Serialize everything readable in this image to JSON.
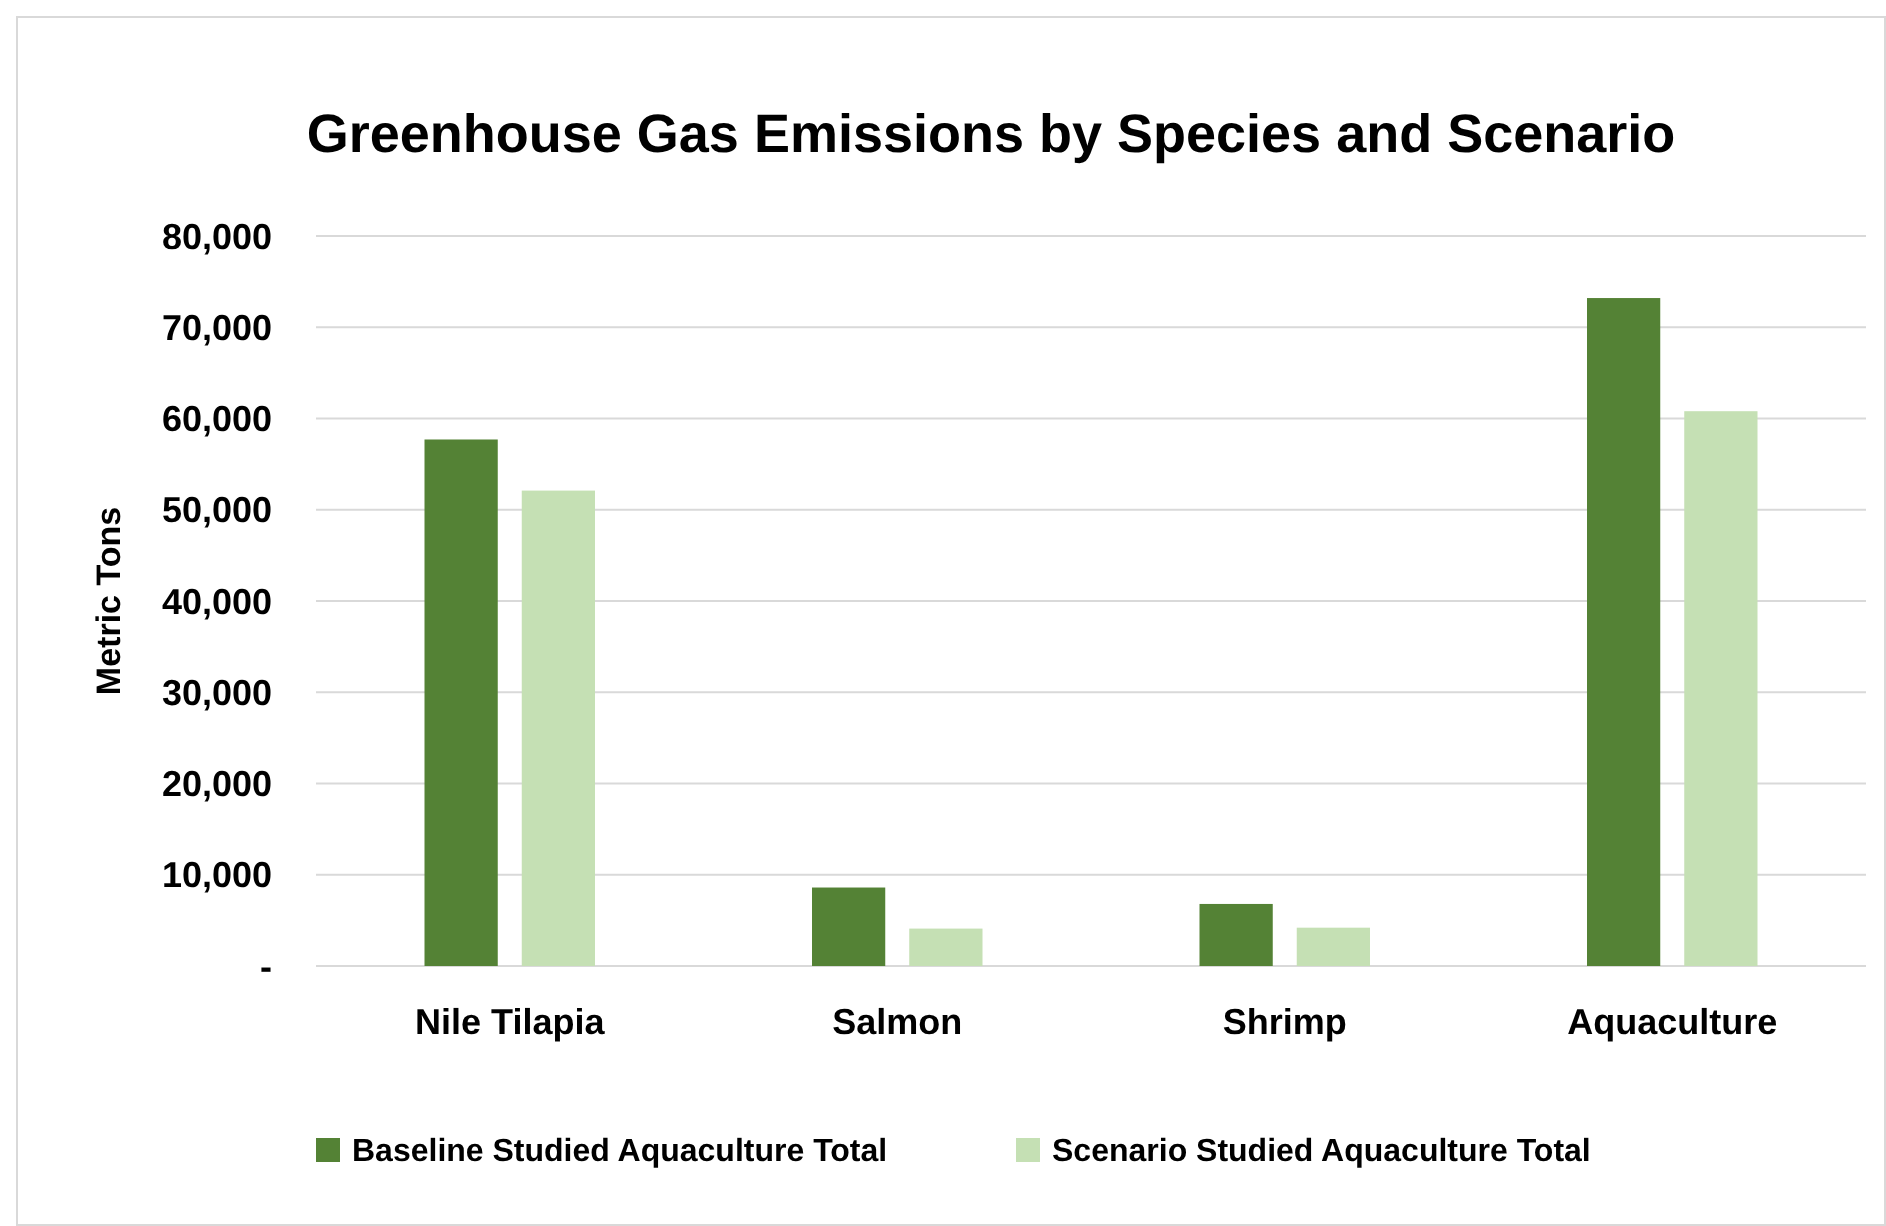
{
  "chart_data": {
    "type": "bar",
    "title": "Greenhouse Gas Emissions by Species and Scenario",
    "ylabel": "Metric Tons",
    "categories": [
      "Nile Tilapia",
      "Salmon",
      "Shrimp",
      "Aquaculture"
    ],
    "series": [
      {
        "name": "Baseline Studied Aquaculture Total",
        "color": "#548235",
        "values": [
          57700,
          8600,
          6800,
          73200
        ]
      },
      {
        "name": "Scenario Studied Aquaculture Total",
        "color": "#c5e0b4",
        "values": [
          52100,
          4100,
          4200,
          60800
        ]
      }
    ],
    "ylim": [
      0,
      80000
    ],
    "yticks": [
      {
        "value": 0,
        "label": "-"
      },
      {
        "value": 10000,
        "label": "10,000"
      },
      {
        "value": 20000,
        "label": "20,000"
      },
      {
        "value": 30000,
        "label": "30,000"
      },
      {
        "value": 40000,
        "label": "40,000"
      },
      {
        "value": 50000,
        "label": "50,000"
      },
      {
        "value": 60000,
        "label": "60,000"
      },
      {
        "value": 70000,
        "label": "70,000"
      },
      {
        "value": 80000,
        "label": "80,000"
      }
    ],
    "grid": "y",
    "legend": "bottom"
  }
}
